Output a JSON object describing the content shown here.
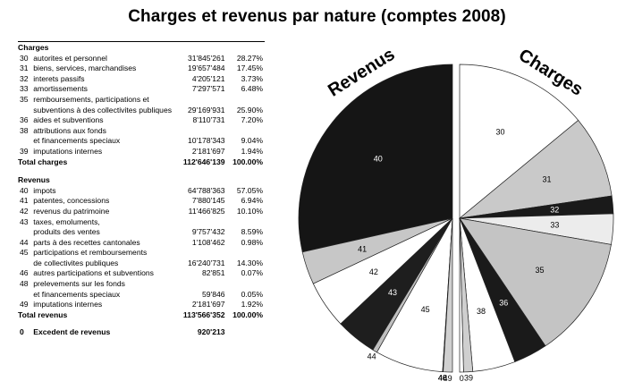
{
  "title": "Charges et revenus par nature (comptes 2008)",
  "table": {
    "charges_heading": "Charges",
    "charges_rows": [
      {
        "code": "30",
        "label": [
          "autorites et personnel"
        ],
        "amount": "31'845'261",
        "pct": "28.27%"
      },
      {
        "code": "31",
        "label": [
          "biens, services, marchandises"
        ],
        "amount": "19'657'484",
        "pct": "17.45%"
      },
      {
        "code": "32",
        "label": [
          "interets passifs"
        ],
        "amount": "4'205'121",
        "pct": "3.73%"
      },
      {
        "code": "33",
        "label": [
          "amortissements"
        ],
        "amount": "7'297'571",
        "pct": "6.48%"
      },
      {
        "code": "35",
        "label": [
          "remboursements, participations et",
          "subventions à des collectivites publiques"
        ],
        "amount": "29'169'931",
        "pct": "25.90%"
      },
      {
        "code": "36",
        "label": [
          "aides et subventions"
        ],
        "amount": "8'110'731",
        "pct": "7.20%"
      },
      {
        "code": "38",
        "label": [
          "attributions aux fonds",
          "et financements speciaux"
        ],
        "amount": "10'178'343",
        "pct": "9.04%"
      },
      {
        "code": "39",
        "label": [
          "imputations internes"
        ],
        "amount": "2'181'697",
        "pct": "1.94%"
      }
    ],
    "charges_total": {
      "label": "Total charges",
      "amount": "112'646'139",
      "pct": "100.00%"
    },
    "revenus_heading": "Revenus",
    "revenus_rows": [
      {
        "code": "40",
        "label": [
          "impots"
        ],
        "amount": "64'788'363",
        "pct": "57.05%"
      },
      {
        "code": "41",
        "label": [
          "patentes, concessions"
        ],
        "amount": "7'880'145",
        "pct": "6.94%"
      },
      {
        "code": "42",
        "label": [
          "revenus du patrimoine"
        ],
        "amount": "11'466'825",
        "pct": "10.10%"
      },
      {
        "code": "43",
        "label": [
          "taxes, emoluments,",
          "produits des ventes"
        ],
        "amount": "9'757'432",
        "pct": "8.59%"
      },
      {
        "code": "44",
        "label": [
          "parts à des recettes cantonales"
        ],
        "amount": "1'108'462",
        "pct": "0.98%"
      },
      {
        "code": "45",
        "label": [
          "participations et remboursements",
          "de collectivites publiques"
        ],
        "amount": "16'240'731",
        "pct": "14.30%"
      },
      {
        "code": "46",
        "label": [
          "autres participations et subventions"
        ],
        "amount": "82'851",
        "pct": "0.07%"
      },
      {
        "code": "48",
        "label": [
          "prelevements sur les fonds",
          "et financements speciaux"
        ],
        "amount": "59'846",
        "pct": "0.05%"
      },
      {
        "code": "49",
        "label": [
          "imputations internes"
        ],
        "amount": "2'181'697",
        "pct": "1.92%"
      }
    ],
    "revenus_total": {
      "label": "Total revenus",
      "amount": "113'566'352",
      "pct": "100.00%"
    },
    "excedent": {
      "code": "0",
      "label": "Excedent de revenus",
      "amount": "920'213"
    }
  },
  "chart_data": {
    "type": "pie",
    "title": "Charges et revenus par nature (comptes 2008)",
    "halves": [
      {
        "name": "Revenus",
        "side": "left",
        "slices": [
          {
            "label": "40",
            "value": 64788363,
            "pct": 57.05,
            "color": "#151515"
          },
          {
            "label": "41",
            "value": 7880145,
            "pct": 6.94,
            "color": "#c7c7c7"
          },
          {
            "label": "42",
            "value": 11466825,
            "pct": 10.1,
            "color": "#ffffff"
          },
          {
            "label": "43",
            "value": 9757432,
            "pct": 8.59,
            "color": "#1e1e1e"
          },
          {
            "label": "44",
            "value": 1108462,
            "pct": 0.98,
            "color": "#c0c0c0"
          },
          {
            "label": "45",
            "value": 16240731,
            "pct": 14.3,
            "color": "#ffffff"
          },
          {
            "label": "46",
            "value": 82851,
            "pct": 0.07,
            "color": "#1e1e1e"
          },
          {
            "label": "48",
            "value": 59846,
            "pct": 0.05,
            "color": "#1e1e1e"
          },
          {
            "label": "49",
            "value": 2181697,
            "pct": 1.92,
            "color": "#d0d0d0"
          }
        ]
      },
      {
        "name": "Charges",
        "side": "right",
        "slices": [
          {
            "label": "30",
            "value": 31845261,
            "pct": 28.27,
            "color": "#ffffff"
          },
          {
            "label": "31",
            "value": 19657484,
            "pct": 17.45,
            "color": "#c9c9c9"
          },
          {
            "label": "32",
            "value": 4205121,
            "pct": 3.73,
            "color": "#1a1a1a"
          },
          {
            "label": "33",
            "value": 7297571,
            "pct": 6.48,
            "color": "#ececec"
          },
          {
            "label": "35",
            "value": 29169931,
            "pct": 25.9,
            "color": "#c4c4c4"
          },
          {
            "label": "36",
            "value": 8110731,
            "pct": 7.2,
            "color": "#1a1a1a"
          },
          {
            "label": "38",
            "value": 10178343,
            "pct": 9.04,
            "color": "#ffffff"
          },
          {
            "label": "39",
            "value": 2181697,
            "pct": 1.94,
            "color": "#cfcfcf"
          },
          {
            "label": "0",
            "value": 920213,
            "pct": 0.82,
            "color": "#ffffff"
          }
        ]
      }
    ]
  }
}
